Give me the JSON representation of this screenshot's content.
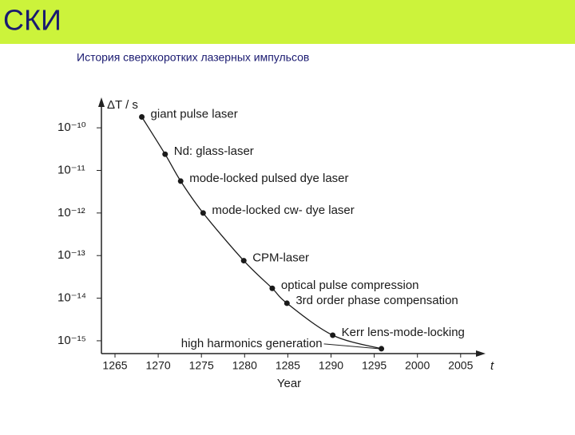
{
  "header": {
    "title": "СКИ"
  },
  "chart_data": {
    "type": "line",
    "title": "История сверхкоротких лазерных импульсов",
    "y_label": "ΔT / s",
    "x_label": "Year",
    "x_axis_symbol": "t",
    "log_y": true,
    "color": "#1a1a1a",
    "xlim": [
      1262,
      2010
    ],
    "xticks": [
      1265,
      1270,
      1275,
      1280,
      1285,
      1290,
      1295,
      2000,
      2005
    ],
    "ylim": [
      5e-16,
      4e-10
    ],
    "yticks": [
      {
        "value": 1e-10,
        "label": "10⁻¹⁰"
      },
      {
        "value": 1e-11,
        "label": "10⁻¹¹"
      },
      {
        "value": 1e-12,
        "label": "10⁻¹²"
      },
      {
        "value": 1e-13,
        "label": "10⁻¹³"
      },
      {
        "value": 1e-14,
        "label": "10⁻¹⁴"
      },
      {
        "value": 1e-15,
        "label": "10⁻¹⁵"
      }
    ],
    "x": [
      1268.1,
      1270.8,
      1272.6,
      1275.2,
      1279.9,
      1283.2,
      1284.9,
      1290.2,
      1412
    ],
    "values": [
      1.8e-10,
      2.4e-11,
      5.6e-12,
      1e-12,
      7.6e-14,
      1.7e-14,
      7.6e-15,
      1.35e-15,
      6.5e-16
    ],
    "point_labels": [
      "giant pulse laser",
      "Nd: glass-laser",
      "mode-locked pulsed dye laser",
      "mode-locked cw- dye laser",
      "CPM-laser",
      "optical pulse compression",
      "3rd order phase compensation",
      "Kerr lens-mode-locking",
      "high  harmonics generation"
    ]
  }
}
